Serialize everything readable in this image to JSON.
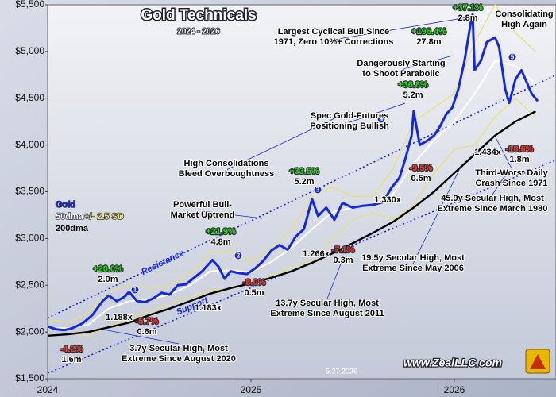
{
  "chart_data": {
    "type": "line",
    "title": "Gold Technicals",
    "subtitle": "2024 - 2026",
    "xlim": [
      2024,
      2026.5
    ],
    "xticks": [
      2024,
      2025,
      2026
    ],
    "ylim": [
      1500,
      5500
    ],
    "yticks": [
      {
        "value": 1500,
        "label": "$1,500"
      },
      {
        "value": 2000,
        "label": "$2,000"
      },
      {
        "value": 2500,
        "label": "$2,500"
      },
      {
        "value": 3000,
        "label": "$3,000"
      },
      {
        "value": 3500,
        "label": "$3,500"
      },
      {
        "value": 4000,
        "label": "$4,000"
      },
      {
        "value": 4500,
        "label": "$4,500"
      },
      {
        "value": 5000,
        "label": "$5,000"
      },
      {
        "value": 5500,
        "label": "$5,500"
      }
    ],
    "grid": false,
    "series": [
      {
        "name": "+/- 2.5 SD",
        "color": "#e8e070",
        "x": [
          2024.0,
          2024.1,
          2024.2,
          2024.3,
          2024.4,
          2024.5,
          2024.6,
          2024.7,
          2024.8,
          2024.9,
          2025.0,
          2025.1,
          2025.2,
          2025.3,
          2025.4,
          2025.5,
          2025.6,
          2025.7,
          2025.8,
          2025.9,
          2026.0,
          2026.1,
          2026.2,
          2026.3,
          2026.4
        ],
        "values": [
          2130,
          2100,
          2200,
          2450,
          2500,
          2470,
          2500,
          2620,
          2850,
          2860,
          2760,
          2900,
          3100,
          3450,
          3550,
          3450,
          3450,
          3750,
          4250,
          4400,
          4550,
          5100,
          5500,
          5200,
          5000
        ],
        "lower": [
          1960,
          1980,
          1960,
          2050,
          2150,
          2220,
          2300,
          2380,
          2450,
          2460,
          2520,
          2600,
          2700,
          2750,
          3000,
          3200,
          3270,
          3200,
          3350,
          3700,
          3950,
          4000,
          4300,
          4500,
          4300
        ]
      },
      {
        "name": "50dma",
        "color": "#ffffff",
        "x": [
          2024.0,
          2024.1,
          2024.2,
          2024.3,
          2024.4,
          2024.5,
          2024.6,
          2024.7,
          2024.8,
          2024.9,
          2025.0,
          2025.1,
          2025.2,
          2025.3,
          2025.4,
          2025.5,
          2025.6,
          2025.7,
          2025.8,
          2025.9,
          2026.0,
          2026.1,
          2026.2,
          2026.3,
          2026.4
        ],
        "values": [
          2040,
          2040,
          2080,
          2250,
          2330,
          2350,
          2400,
          2500,
          2650,
          2660,
          2640,
          2750,
          2900,
          3100,
          3280,
          3330,
          3360,
          3480,
          3800,
          4050,
          4250,
          4550,
          4900,
          4850,
          4650
        ]
      },
      {
        "name": "200dma",
        "color": "#000000",
        "x": [
          2024.0,
          2024.1,
          2024.2,
          2024.3,
          2024.4,
          2024.5,
          2024.6,
          2024.7,
          2024.8,
          2024.9,
          2025.0,
          2025.1,
          2025.2,
          2025.3,
          2025.4,
          2025.5,
          2025.6,
          2025.7,
          2025.8,
          2025.9,
          2026.0,
          2026.1,
          2026.2,
          2026.3,
          2026.4
        ],
        "values": [
          1960,
          1975,
          2000,
          2050,
          2100,
          2180,
          2250,
          2330,
          2410,
          2470,
          2520,
          2580,
          2650,
          2740,
          2840,
          2950,
          3060,
          3180,
          3330,
          3500,
          3700,
          3900,
          4100,
          4250,
          4360
        ]
      },
      {
        "name": "Gold",
        "color": "#1428e0",
        "x": [
          2024.0,
          2024.04,
          2024.08,
          2024.12,
          2024.17,
          2024.22,
          2024.27,
          2024.3,
          2024.34,
          2024.38,
          2024.4,
          2024.44,
          2024.48,
          2024.52,
          2024.56,
          2024.6,
          2024.64,
          2024.68,
          2024.72,
          2024.76,
          2024.81,
          2024.84,
          2024.87,
          2024.9,
          2024.94,
          2024.98,
          2025.02,
          2025.06,
          2025.1,
          2025.14,
          2025.18,
          2025.22,
          2025.26,
          2025.3,
          2025.33,
          2025.37,
          2025.41,
          2025.45,
          2025.5,
          2025.55,
          2025.6,
          2025.65,
          2025.69,
          2025.73,
          2025.76,
          2025.79,
          2025.8,
          2025.83,
          2025.87,
          2025.9,
          2025.93,
          2025.96,
          2025.99,
          2026.02,
          2026.05,
          2026.08,
          2026.09,
          2026.1,
          2026.13,
          2026.16,
          2026.2,
          2026.22,
          2026.25,
          2026.27,
          2026.3,
          2026.33,
          2026.36,
          2026.38,
          2026.41
        ],
        "values": [
          2060,
          2030,
          2020,
          2040,
          2090,
          2180,
          2330,
          2390,
          2330,
          2380,
          2430,
          2330,
          2320,
          2360,
          2420,
          2400,
          2500,
          2510,
          2580,
          2650,
          2770,
          2700,
          2570,
          2650,
          2630,
          2620,
          2680,
          2760,
          2870,
          2930,
          2880,
          3020,
          3100,
          3420,
          3240,
          3330,
          3200,
          3380,
          3330,
          3350,
          3360,
          3390,
          3540,
          3650,
          3860,
          4100,
          4360,
          4000,
          4050,
          4100,
          4200,
          4330,
          4400,
          4600,
          4900,
          5300,
          5400,
          4800,
          4900,
          5100,
          5150,
          5050,
          4600,
          4450,
          4700,
          4800,
          4650,
          4550,
          4470
        ]
      }
    ],
    "trendlines": [
      {
        "name": "Resistance",
        "color": "#1428e0",
        "x": [
          2024,
          2026.5
        ],
        "values": [
          2150,
          4750
        ]
      },
      {
        "name": "Support",
        "color": "#1428e0",
        "x": [
          2024,
          2026.5
        ],
        "values": [
          1560,
          3840
        ]
      }
    ],
    "annotations": [
      {
        "lines": [
          "Largest Cyclical Bull Since",
          "1971, Zero 10%+ Corrections"
        ],
        "color": "#000000"
      },
      {
        "lines": [
          "+37.1%",
          "2.8m"
        ],
        "color": "#22dd22"
      },
      {
        "lines": [
          "+196.4%",
          "27.8m"
        ],
        "color": "#22dd22"
      },
      {
        "lines": [
          "Consolidating",
          "High Again"
        ],
        "color": "#000000"
      },
      {
        "lines": [
          "Dangerously Starting",
          "to Shoot Parabolic"
        ],
        "color": "#000000"
      },
      {
        "lines": [
          "+36.8%",
          "5.2m"
        ],
        "color": "#22dd22"
      },
      {
        "lines": [
          "Spec Gold-Futures",
          "Positioning Bullish"
        ],
        "color": "#000000"
      },
      {
        "lines": [
          "High Consolidations",
          "Bleed Overboughtness"
        ],
        "color": "#000000"
      },
      {
        "lines": [
          "+33.5%",
          "5.2m"
        ],
        "color": "#22dd22"
      },
      {
        "lines": [
          "Powerful Bull-",
          "Market Uptrend"
        ],
        "color": "#000000"
      },
      {
        "lines": [
          "+21.9%",
          "4.8m"
        ],
        "color": "#22dd22"
      },
      {
        "lines": [
          "+20.0%",
          "2.0m"
        ],
        "color": "#22dd22"
      },
      {
        "lines": [
          "1.188x"
        ],
        "color": "#000000"
      },
      {
        "lines": [
          "-5.7%",
          "0.6m"
        ],
        "color": "#ff3333"
      },
      {
        "lines": [
          "-4.2%",
          "1.6m"
        ],
        "color": "#ff3333"
      },
      {
        "lines": [
          "3.7y Secular High, Most",
          "Extreme Since August 2020"
        ],
        "color": "#000000"
      },
      {
        "lines": [
          "1.183x"
        ],
        "color": "#000000"
      },
      {
        "lines": [
          "-8.0%",
          "0.5m"
        ],
        "color": "#ff3333"
      },
      {
        "lines": [
          "1.266x"
        ],
        "color": "#000000"
      },
      {
        "lines": [
          "-7.1%",
          "0.3m"
        ],
        "color": "#ff3333"
      },
      {
        "lines": [
          "13.7y Secular High, Most",
          "Extreme Since August 2011"
        ],
        "color": "#000000"
      },
      {
        "lines": [
          "19.5y Secular High, Most",
          "Extreme Since May 2006"
        ],
        "color": "#000000"
      },
      {
        "lines": [
          "1.330x"
        ],
        "color": "#000000"
      },
      {
        "lines": [
          "-9.5%",
          "0.5m"
        ],
        "color": "#ff3333"
      },
      {
        "lines": [
          "1.434x"
        ],
        "color": "#000000"
      },
      {
        "lines": [
          "-18.6%",
          "1.8m"
        ],
        "color": "#ff3333"
      },
      {
        "lines": [
          "Third-Worst Daily",
          "Crash Since 1971"
        ],
        "color": "#000000"
      },
      {
        "lines": [
          "45.9y Secular High, Most",
          "Extreme Since March 1980"
        ],
        "color": "#000000"
      }
    ],
    "markers": [
      "1",
      "2",
      "3",
      "4",
      "5"
    ],
    "date_stamp": "5.27.2026",
    "website": "www.ZealLLC.com"
  }
}
